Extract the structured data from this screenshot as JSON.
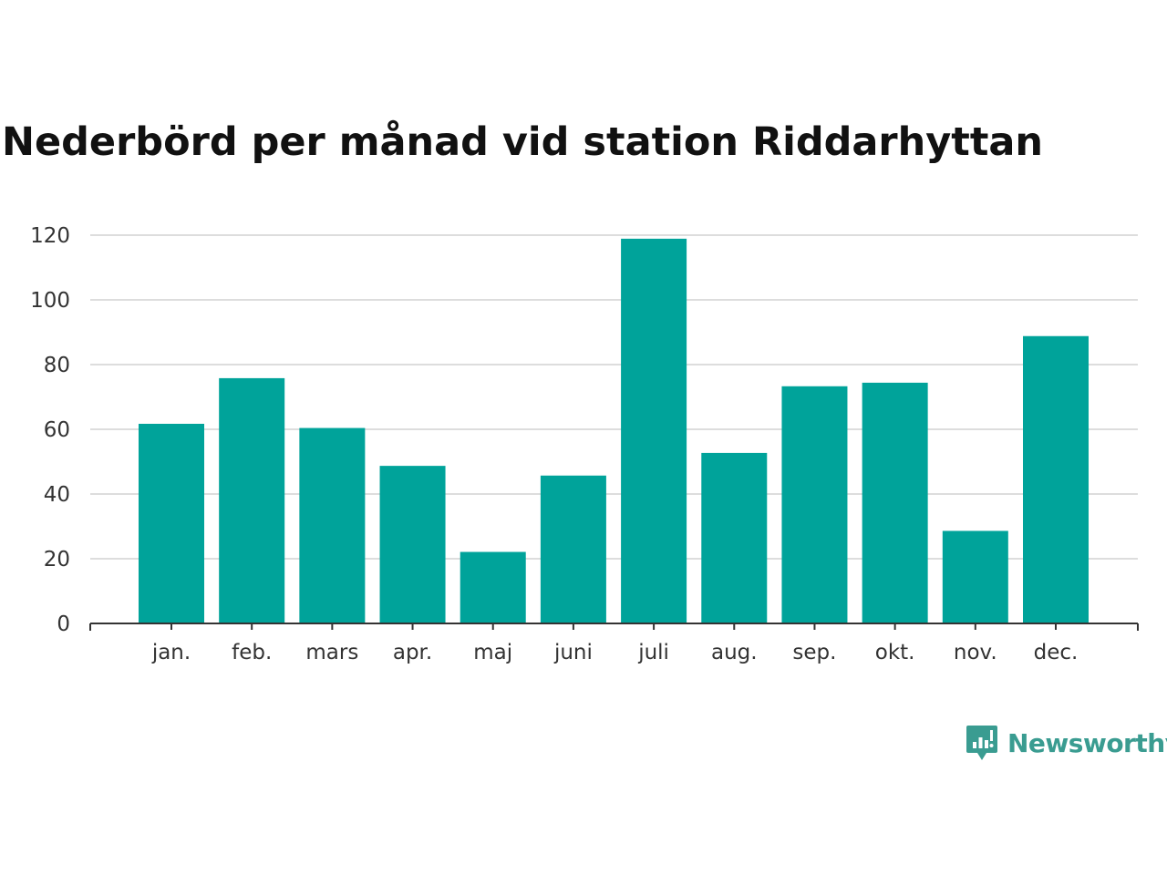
{
  "colors": {
    "bar": "#00a39a",
    "grid": "#dddddd",
    "axis": "#333333",
    "brand": "#3a9c91"
  },
  "brand": {
    "name": "Newsworthy",
    "icon": "chart-speech-bubble-icon"
  },
  "chart_data": {
    "type": "bar",
    "title": "Nederbörd per månad vid station Riddarhyttan",
    "xlabel": "",
    "ylabel": "",
    "categories": [
      "jan.",
      "feb.",
      "mars",
      "apr.",
      "maj",
      "juni",
      "juli",
      "aug.",
      "sep.",
      "okt.",
      "nov.",
      "dec."
    ],
    "values": [
      61.7,
      75.8,
      60.4,
      48.7,
      22.1,
      45.7,
      118.9,
      52.7,
      73.3,
      74.4,
      28.6,
      88.8
    ],
    "ylim": [
      0,
      120
    ],
    "yticks": [
      0,
      20,
      40,
      60,
      80,
      100,
      120
    ],
    "grid": true,
    "legend": "none"
  }
}
